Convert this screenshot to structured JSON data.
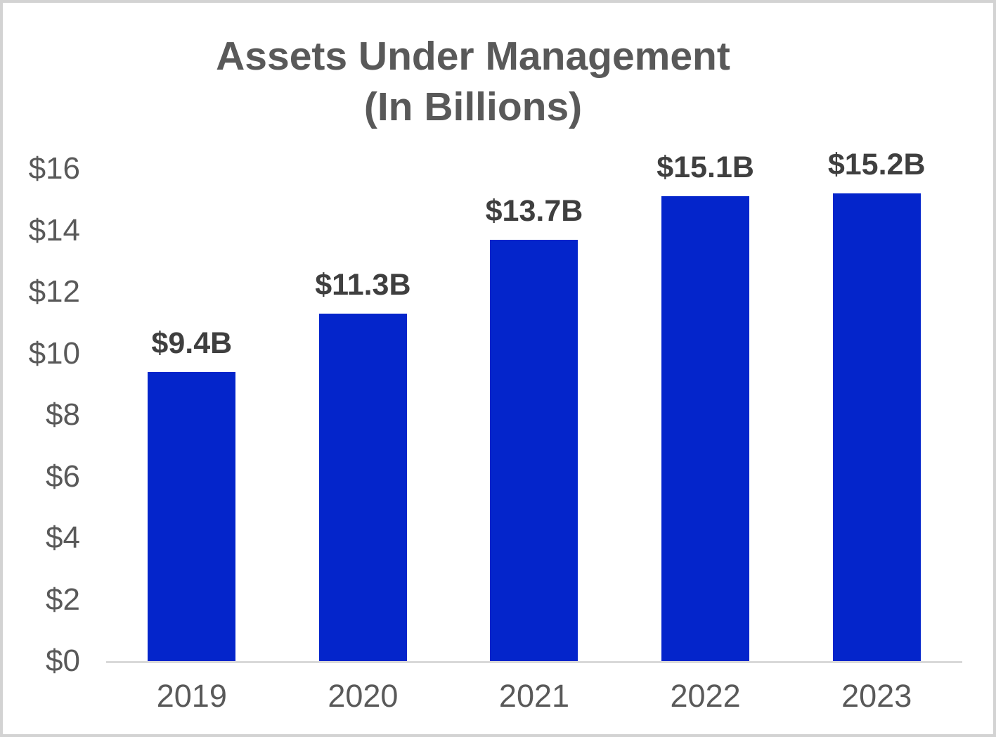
{
  "page": {
    "background_color": "#ffffff",
    "frame_border_color": "#d3d3d3"
  },
  "chart_data": {
    "type": "bar",
    "title": "Assets Under Management",
    "subtitle": "(In Billions)",
    "categories": [
      "2019",
      "2020",
      "2021",
      "2022",
      "2023"
    ],
    "values": [
      9.4,
      11.3,
      13.7,
      15.1,
      15.2
    ],
    "data_labels": [
      "$9.4B",
      "$11.3B",
      "$13.7B",
      "$15.1B",
      "$15.2B"
    ],
    "xlabel": "",
    "ylabel": "",
    "ylim": [
      0,
      16
    ],
    "ytick_step": 2,
    "ytick_labels": [
      "$0",
      "$2",
      "$4",
      "$6",
      "$8",
      "$10",
      "$12",
      "$14",
      "$16"
    ],
    "grid": false,
    "legend": false,
    "bar_color": "#0425cb",
    "title_color": "#595959",
    "tick_label_color": "#595959",
    "data_label_color": "#3f3f3f",
    "axis_line_color": "#d9d9d9"
  }
}
